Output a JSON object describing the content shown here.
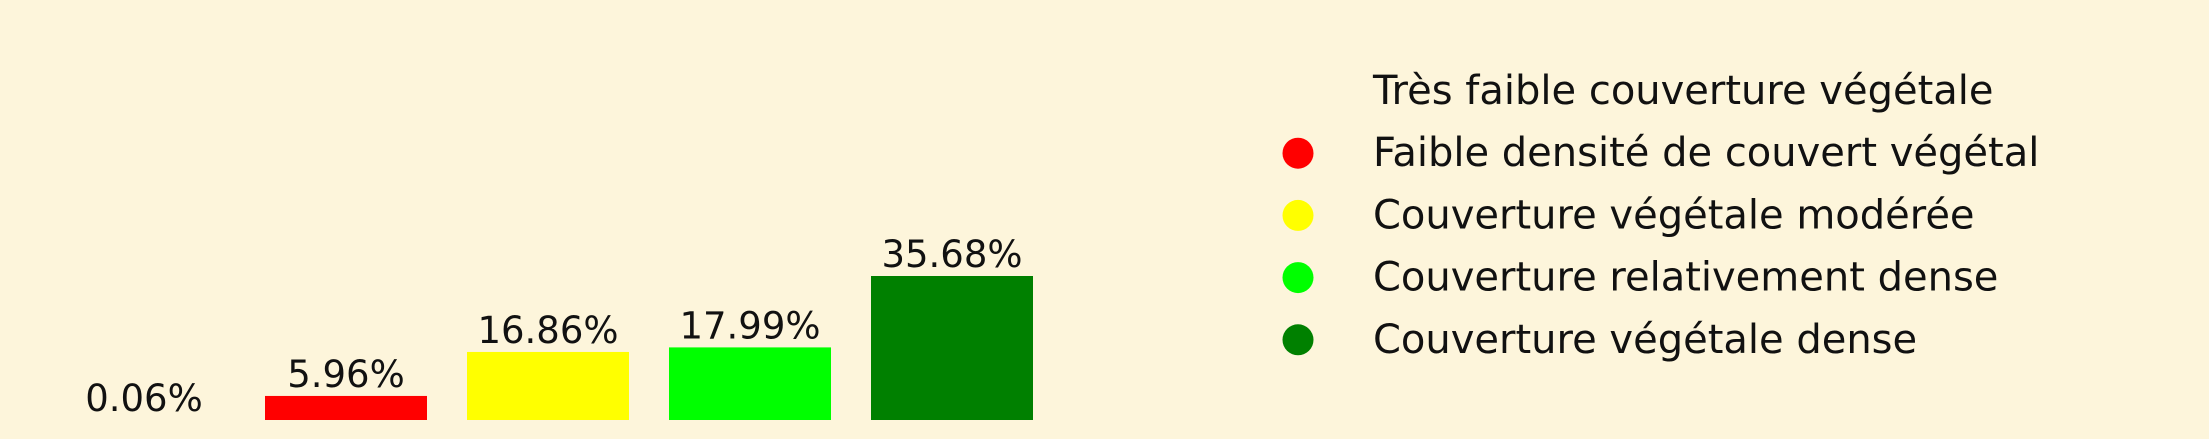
{
  "chart_data": {
    "type": "bar",
    "title": "",
    "xlabel": "",
    "ylabel": "",
    "ylim": [
      0,
      35.68
    ],
    "grid": false,
    "legend_placement": "right",
    "categories": [
      "Très faible couverture végétale",
      "Faible densité de couvert végétal",
      "Couverture végétale modérée",
      "Couverture relativement dense",
      "Couverture végétale dense"
    ],
    "values": [
      0.06,
      5.96,
      16.86,
      17.99,
      35.68
    ],
    "data_labels": [
      "0.06%",
      "5.96%",
      "16.86%",
      "17.99%",
      "35.68%"
    ],
    "colors": [
      "#fdf5db",
      "#ff0000",
      "#ffff00",
      "#00ff00",
      "#008000"
    ],
    "background": "#fdf5db"
  }
}
